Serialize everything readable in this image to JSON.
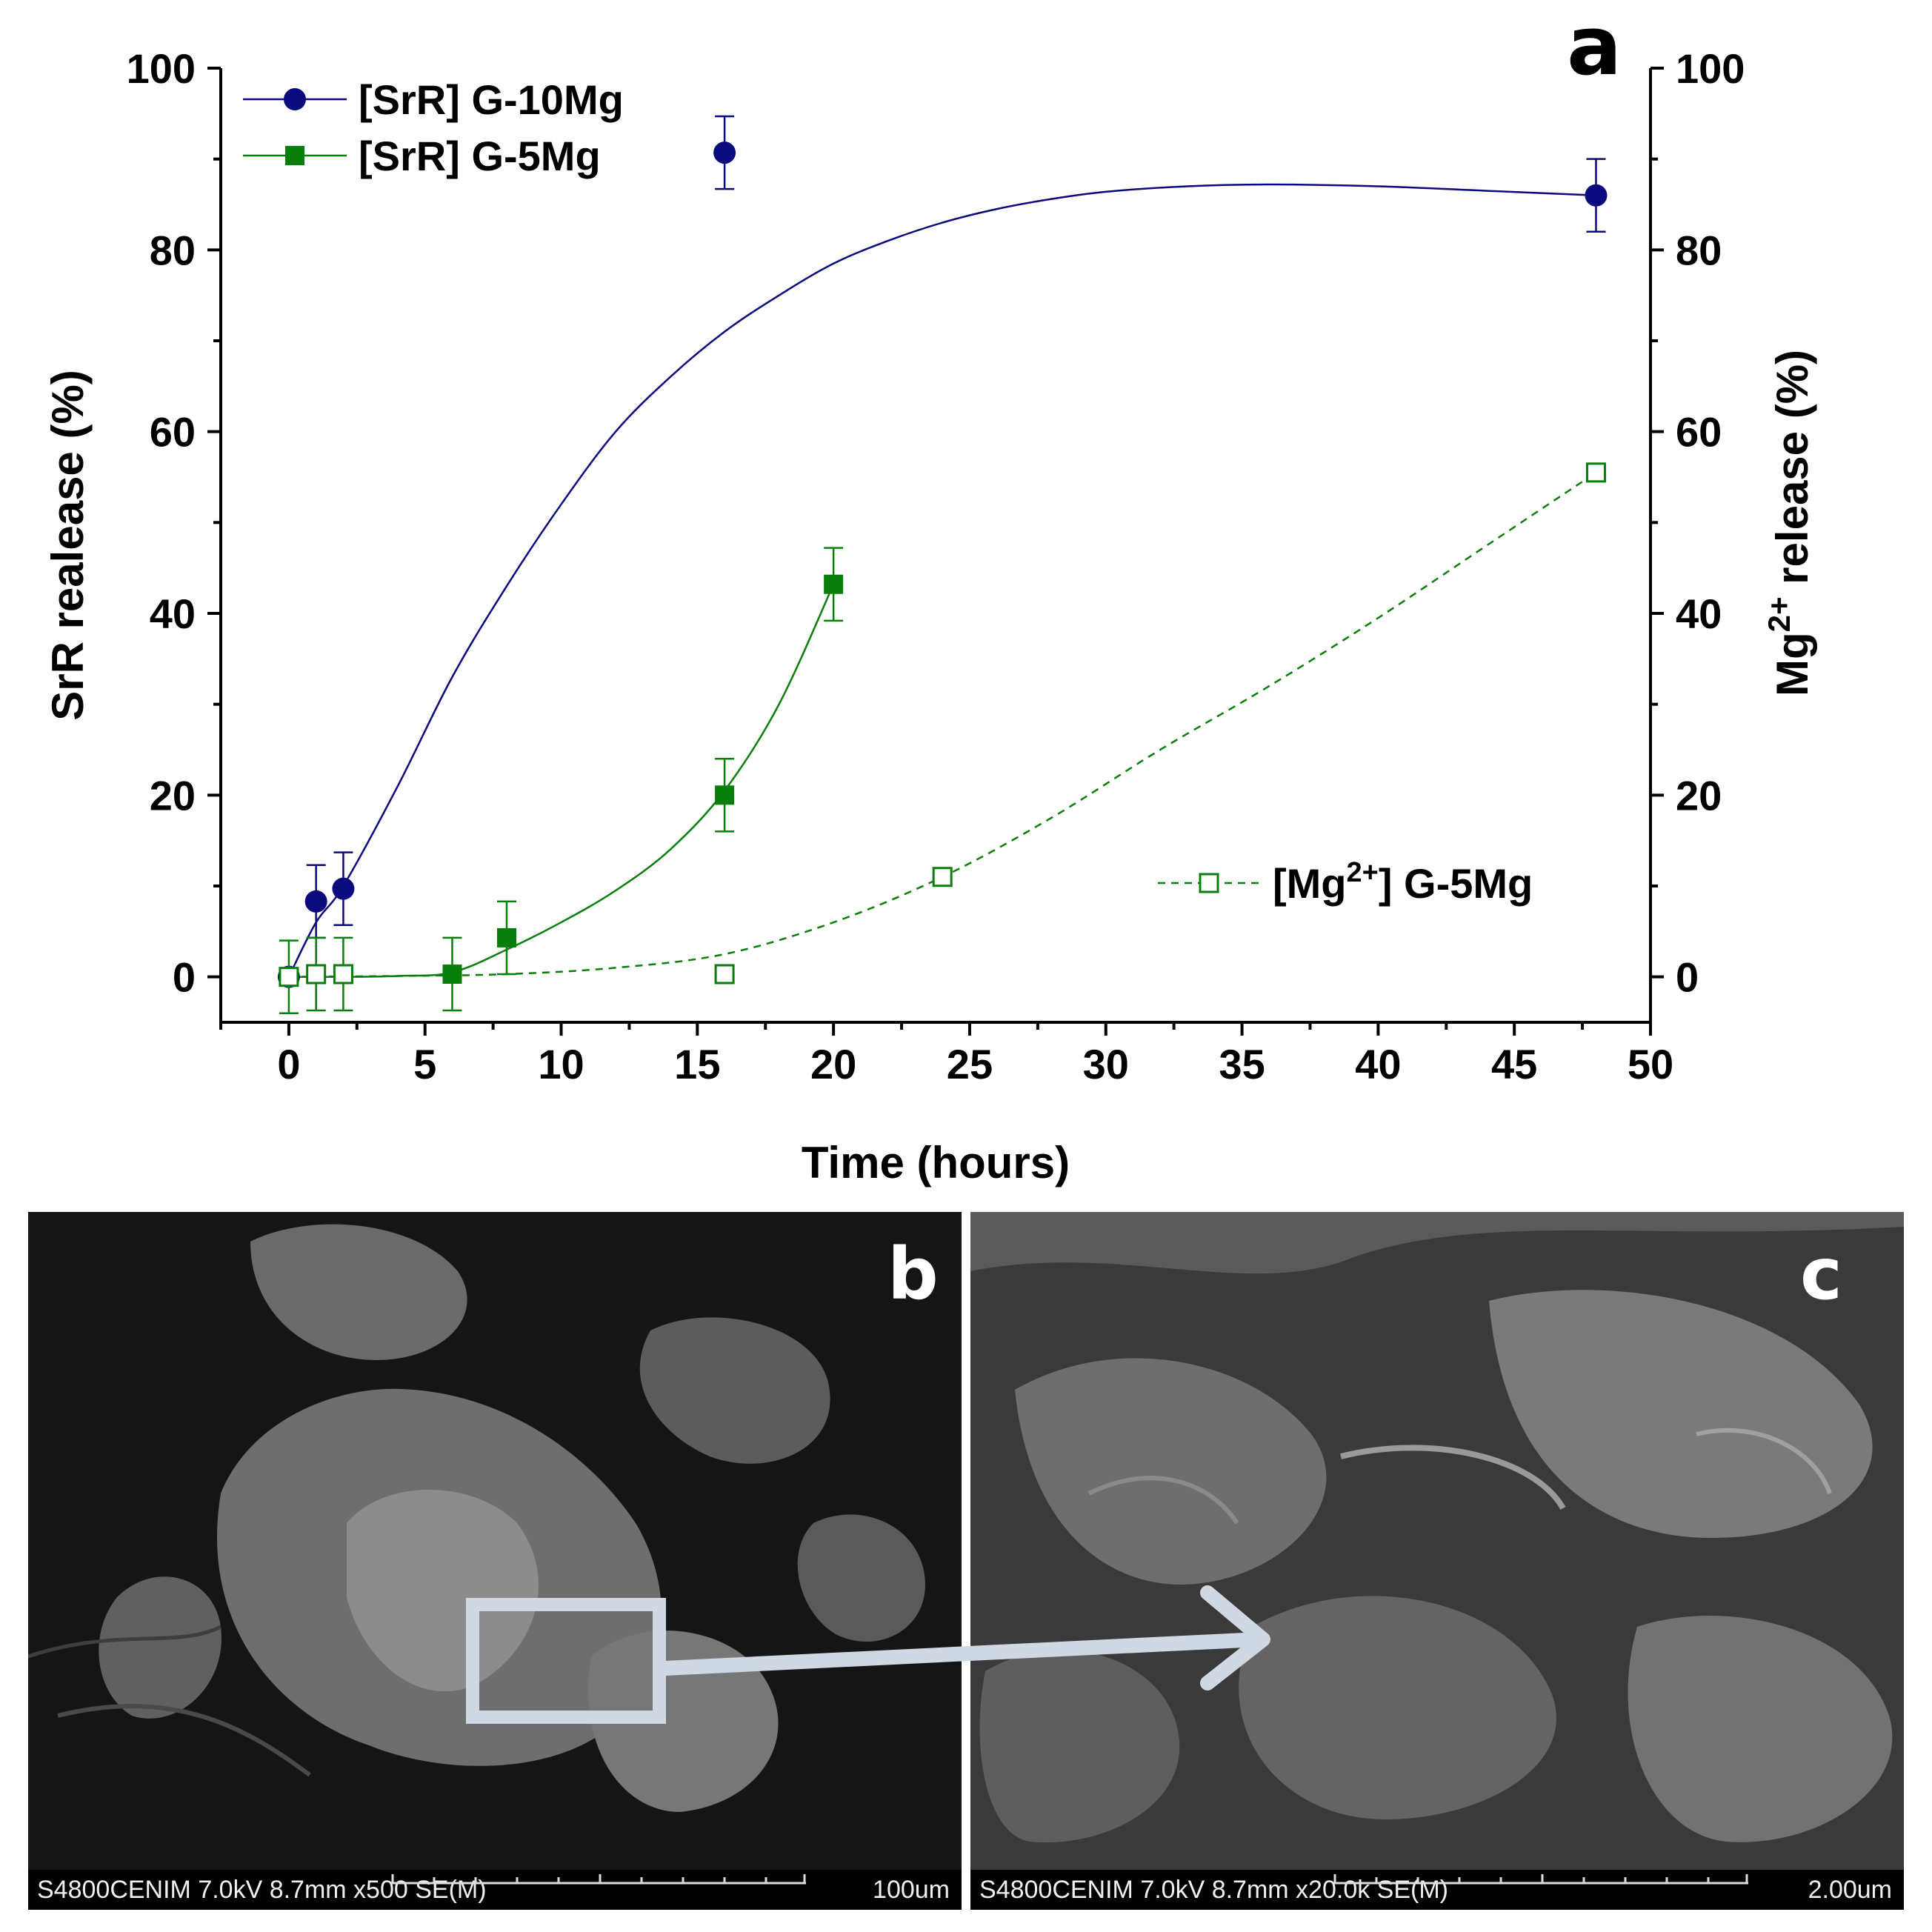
{
  "panel_labels": {
    "a": "a",
    "b": "b",
    "c": "c"
  },
  "chart_data": {
    "type": "scatter",
    "title": "",
    "xlabel": "Time (hours)",
    "ylabel_left": "SrR realease (%)",
    "ylabel_right_base": "Mg",
    "ylabel_right_sup": "2+",
    "ylabel_right_tail": " release (%)",
    "xlim": [
      -2.5,
      50
    ],
    "ylim": [
      -5,
      100
    ],
    "x_ticks": [
      0,
      5,
      10,
      15,
      20,
      25,
      30,
      35,
      40,
      45,
      50
    ],
    "y_ticks": [
      0,
      20,
      40,
      60,
      80,
      100
    ],
    "grid": false,
    "legend_placement": "top-left",
    "series": [
      {
        "name": "[SrR] G-10Mg",
        "axis": "left",
        "color": "#0a0a7e",
        "marker": "circle-filled",
        "line": "solid",
        "x": [
          0,
          1,
          2,
          16,
          48
        ],
        "y": [
          0,
          8.3,
          9.7,
          90.7,
          86
        ],
        "err": [
          0,
          4,
          4,
          4,
          4
        ],
        "fit": [
          [
            0,
            0
          ],
          [
            1,
            6
          ],
          [
            2,
            10
          ],
          [
            4,
            21
          ],
          [
            6,
            33
          ],
          [
            8,
            43
          ],
          [
            10,
            52
          ],
          [
            12,
            60
          ],
          [
            14,
            66
          ],
          [
            16,
            71
          ],
          [
            18,
            75
          ],
          [
            20,
            78.5
          ],
          [
            22,
            81
          ],
          [
            24,
            83
          ],
          [
            26,
            84.5
          ],
          [
            28,
            85.6
          ],
          [
            30,
            86.4
          ],
          [
            33,
            87
          ],
          [
            36,
            87.2
          ],
          [
            40,
            87
          ],
          [
            44,
            86.5
          ],
          [
            48,
            86
          ]
        ]
      },
      {
        "name": "[SrR] G-5Mg",
        "axis": "left",
        "color": "#0a7e0a",
        "marker": "square-filled",
        "line": "solid",
        "x": [
          0,
          1,
          2,
          6,
          8,
          16,
          20
        ],
        "y": [
          0,
          0.3,
          0.3,
          0.3,
          4.3,
          20,
          43.2
        ],
        "err": [
          4,
          4,
          4,
          4,
          4,
          4,
          4
        ],
        "fit": [
          [
            0,
            0
          ],
          [
            2,
            0
          ],
          [
            4,
            0.1
          ],
          [
            6,
            0.5
          ],
          [
            8,
            3
          ],
          [
            10,
            6
          ],
          [
            12,
            9.5
          ],
          [
            14,
            14
          ],
          [
            16,
            20.5
          ],
          [
            18,
            30
          ],
          [
            20,
            43.2
          ]
        ]
      },
      {
        "name_base": "[Mg",
        "name_sup": "2+",
        "name_tail": "] G-5Mg",
        "axis": "right",
        "color": "#0a7e0a",
        "marker": "square-open",
        "line": "dashed",
        "x": [
          0,
          1,
          2,
          16,
          24,
          48
        ],
        "y": [
          0,
          0.3,
          0.3,
          0.3,
          11,
          55.5
        ],
        "err": [
          0,
          0,
          0,
          0,
          0,
          0
        ],
        "fit": [
          [
            0,
            0
          ],
          [
            4,
            0.1
          ],
          [
            8,
            0.3
          ],
          [
            12,
            1
          ],
          [
            16,
            2.5
          ],
          [
            20,
            6
          ],
          [
            24,
            11
          ],
          [
            28,
            17.5
          ],
          [
            32,
            25
          ],
          [
            36,
            32
          ],
          [
            40,
            39.5
          ],
          [
            44,
            47.5
          ],
          [
            48,
            55.5
          ]
        ]
      }
    ]
  },
  "sem_panels": {
    "b": {
      "meta": "S4800CENIM 7.0kV 8.7mm x500 SE(M)",
      "scale": "100um"
    },
    "c": {
      "meta": "S4800CENIM 7.0kV 8.7mm x20.0k SE(M)",
      "scale": "2.00um"
    }
  },
  "colors": {
    "arrow": "#cfd8e3"
  }
}
